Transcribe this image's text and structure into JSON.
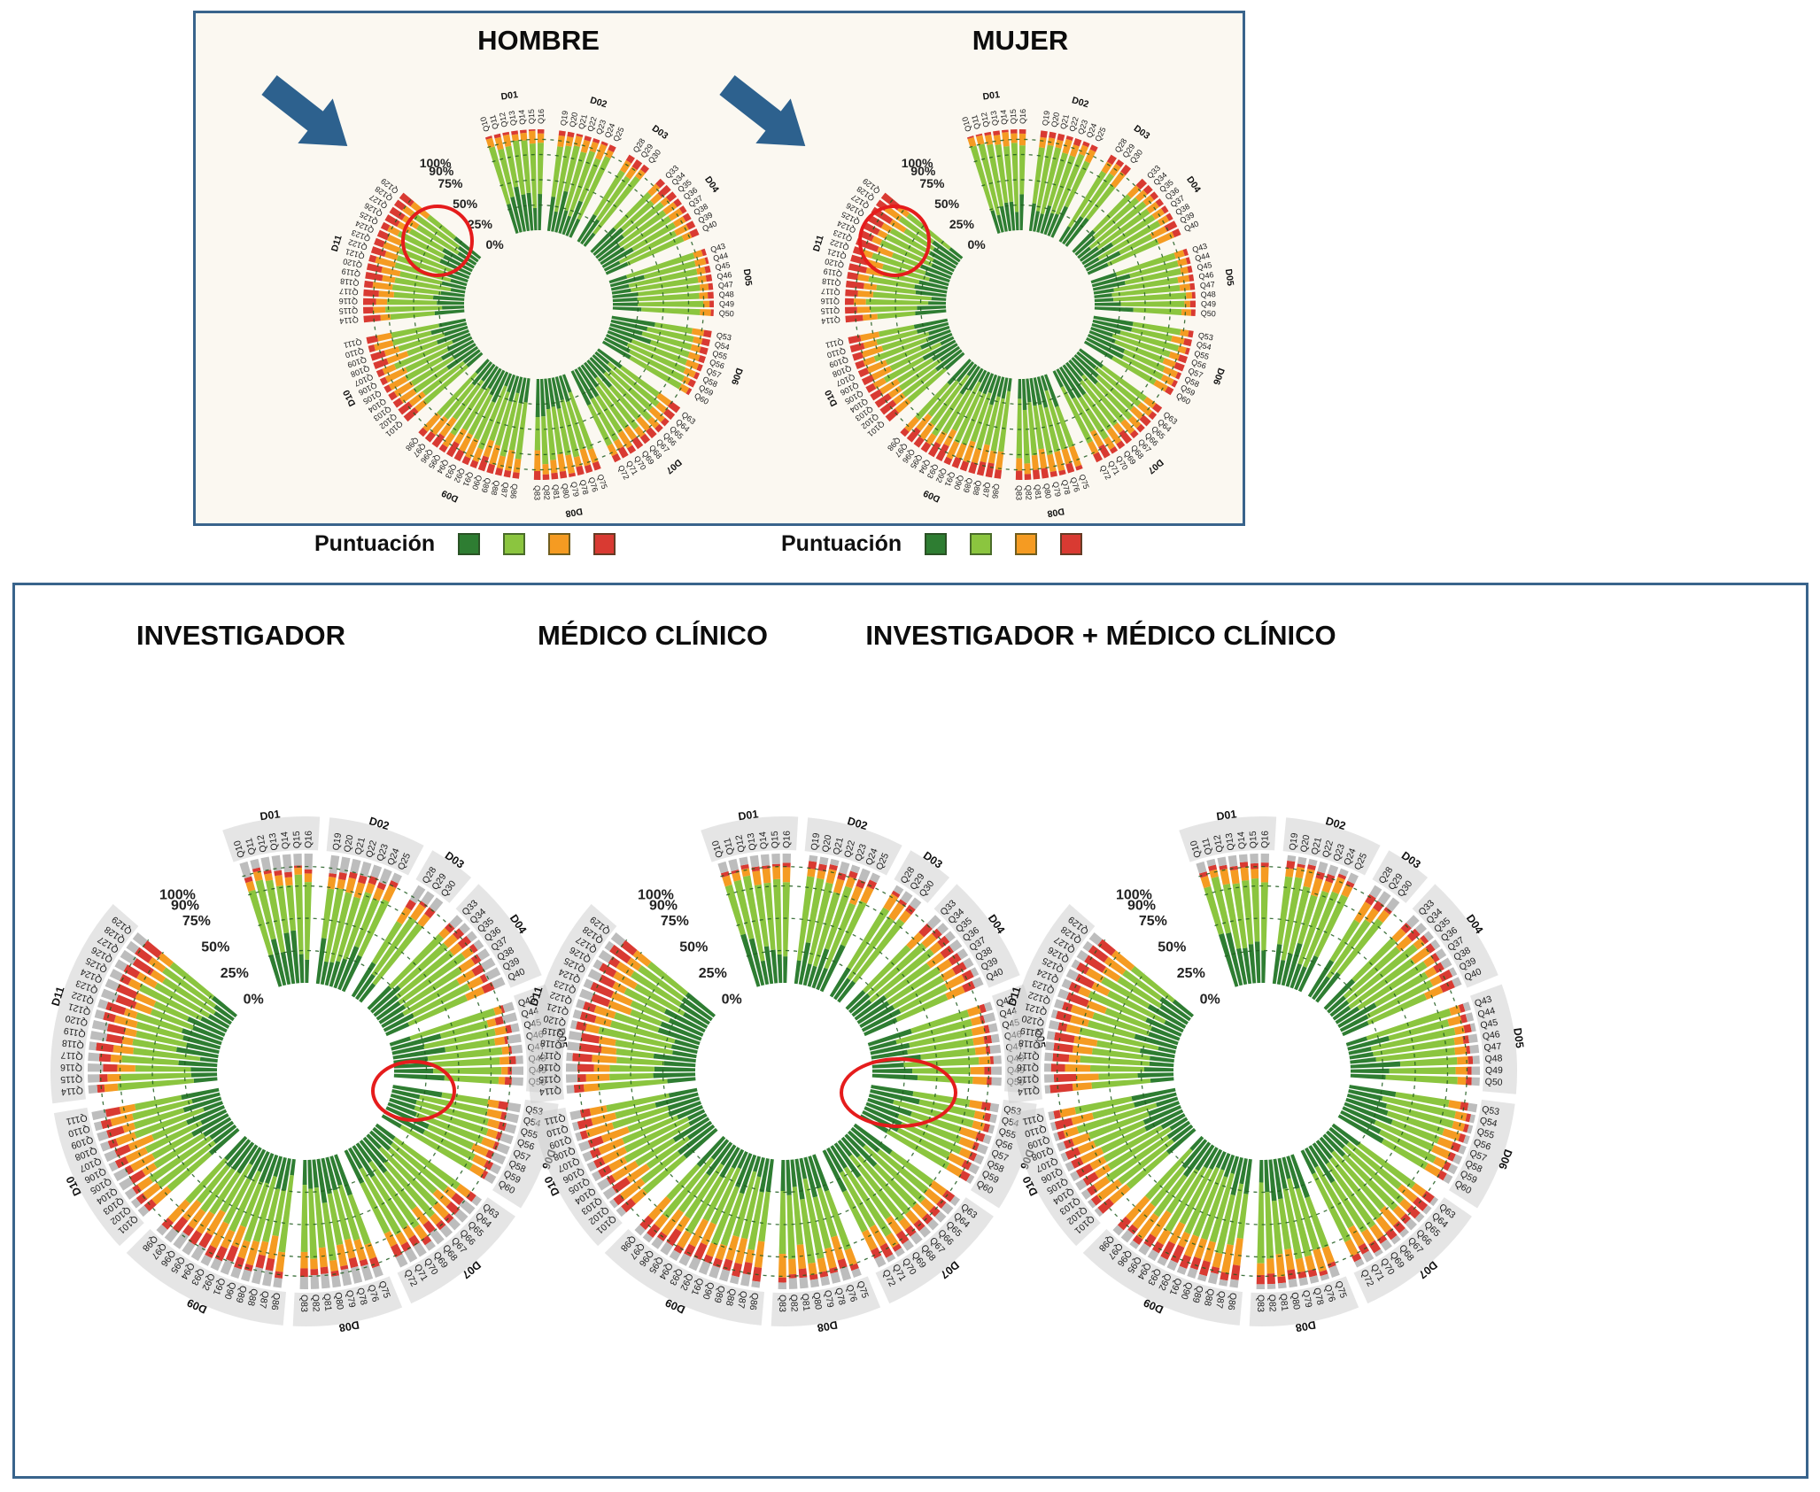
{
  "figure": {
    "top_panel": {
      "charts": [
        {
          "title": "HOMBRE"
        },
        {
          "title": "MUJER"
        }
      ],
      "legends": [
        {
          "label": "Puntuación"
        },
        {
          "label": "Puntuación"
        }
      ]
    },
    "bottom_panel": {
      "charts": [
        {
          "title": "INVESTIGADOR"
        },
        {
          "title": "MÉDICO CLÍNICO"
        },
        {
          "title": "INVESTIGADOR + MÉDICO CLÍNICO"
        }
      ]
    }
  },
  "chart_data": {
    "type": "radial_stacked_bar",
    "radial_axis": {
      "ticks": [
        "100%",
        "90%",
        "75%",
        "50%",
        "25%",
        "0%"
      ],
      "values": [
        100,
        90,
        75,
        50,
        25,
        0
      ]
    },
    "score_legend": {
      "label": "Puntuación",
      "category_names": [
        "score-dark-green",
        "score-light-green",
        "score-orange",
        "score-red"
      ],
      "colors": [
        "#2e7d32",
        "#8bc53f",
        "#f59b22",
        "#d93a32"
      ]
    },
    "gray_color": "#bdbdbd",
    "grid_values": [
      0.25,
      0.5,
      0.75,
      0.9
    ],
    "domains": [
      {
        "id": "D01",
        "questions": [
          "Q10",
          "Q11",
          "Q12",
          "Q13",
          "Q14",
          "Q15",
          "Q16"
        ]
      },
      {
        "id": "D02",
        "questions": [
          "Q19",
          "Q20",
          "Q21",
          "Q22",
          "Q23",
          "Q24",
          "Q25"
        ]
      },
      {
        "id": "D03",
        "questions": [
          "Q28",
          "Q29",
          "Q30"
        ]
      },
      {
        "id": "D04",
        "questions": [
          "Q33",
          "Q34",
          "Q35",
          "Q36",
          "Q37",
          "Q38",
          "Q39",
          "Q40"
        ]
      },
      {
        "id": "D05",
        "questions": [
          "Q43",
          "Q44",
          "Q45",
          "Q46",
          "Q47",
          "Q48",
          "Q49",
          "Q50"
        ]
      },
      {
        "id": "D06",
        "questions": [
          "Q53",
          "Q54",
          "Q55",
          "Q56",
          "Q57",
          "Q58",
          "Q59",
          "Q60"
        ]
      },
      {
        "id": "D07",
        "questions": [
          "Q63",
          "Q64",
          "Q65",
          "Q66",
          "Q67",
          "Q68",
          "Q69",
          "Q70",
          "Q71",
          "Q72"
        ]
      },
      {
        "id": "D08",
        "questions": [
          "Q75",
          "Q76",
          "Q78",
          "Q79",
          "Q80",
          "Q81",
          "Q82",
          "Q83"
        ]
      },
      {
        "id": "D09",
        "questions": [
          "Q86",
          "Q87",
          "Q88",
          "Q89",
          "Q90",
          "Q91",
          "Q92",
          "Q93",
          "Q94",
          "Q95",
          "Q96",
          "Q97",
          "Q98"
        ]
      },
      {
        "id": "D10",
        "questions": [
          "Q101",
          "Q102",
          "Q103",
          "Q104",
          "Q105",
          "Q106",
          "Q107",
          "Q108",
          "Q109",
          "Q110",
          "Q111"
        ]
      },
      {
        "id": "D11",
        "questions": [
          "Q114",
          "Q115",
          "Q116",
          "Q117",
          "Q118",
          "Q119",
          "Q120",
          "Q121",
          "Q122",
          "Q123",
          "Q124",
          "Q125",
          "Q126",
          "Q127",
          "Q128",
          "Q129"
        ]
      }
    ],
    "charts": [
      {
        "name": "HOMBRE",
        "seed": 1,
        "has_gray": false,
        "profiles": [
          [
            0.32,
            0.09,
            0.03,
            0
          ],
          [
            0.3,
            0.11,
            0.04,
            0
          ],
          [
            0.26,
            0.13,
            0.06,
            0
          ],
          [
            0.28,
            0.12,
            0.08,
            0
          ],
          [
            0.32,
            0.08,
            0.04,
            0
          ],
          [
            0.3,
            0.1,
            0.06,
            0
          ],
          [
            0.27,
            0.13,
            0.08,
            0
          ],
          [
            0.27,
            0.15,
            0.06,
            0
          ],
          [
            0.24,
            0.17,
            0.1,
            0
          ],
          [
            0.26,
            0.17,
            0.1,
            0
          ],
          [
            0.26,
            0.15,
            0.13,
            0
          ]
        ]
      },
      {
        "name": "MUJER",
        "seed": 2,
        "has_gray": false,
        "profiles": [
          [
            0.31,
            0.1,
            0.03,
            0
          ],
          [
            0.29,
            0.11,
            0.05,
            0
          ],
          [
            0.26,
            0.13,
            0.06,
            0
          ],
          [
            0.27,
            0.12,
            0.09,
            0
          ],
          [
            0.31,
            0.09,
            0.04,
            0
          ],
          [
            0.29,
            0.1,
            0.07,
            0
          ],
          [
            0.26,
            0.13,
            0.09,
            0
          ],
          [
            0.26,
            0.15,
            0.07,
            0
          ],
          [
            0.23,
            0.17,
            0.11,
            0
          ],
          [
            0.25,
            0.17,
            0.11,
            0
          ],
          [
            0.25,
            0.14,
            0.15,
            0
          ]
        ]
      },
      {
        "name": "INVESTIGADOR",
        "seed": 3,
        "has_gray": true,
        "profiles": [
          [
            0.29,
            0.08,
            0.03,
            0.1
          ],
          [
            0.27,
            0.1,
            0.04,
            0.1
          ],
          [
            0.24,
            0.12,
            0.05,
            0.11
          ],
          [
            0.26,
            0.11,
            0.07,
            0.09
          ],
          [
            0.29,
            0.08,
            0.04,
            0.08
          ],
          [
            0.27,
            0.09,
            0.05,
            0.08
          ],
          [
            0.25,
            0.12,
            0.07,
            0.08
          ],
          [
            0.25,
            0.13,
            0.05,
            0.09
          ],
          [
            0.22,
            0.15,
            0.08,
            0.1
          ],
          [
            0.24,
            0.15,
            0.09,
            0.08
          ],
          [
            0.24,
            0.13,
            0.11,
            0.09
          ]
        ]
      },
      {
        "name": "MÉDICO CLÍNICO",
        "seed": 4,
        "has_gray": true,
        "profiles": [
          [
            0.3,
            0.09,
            0.03,
            0.07
          ],
          [
            0.28,
            0.1,
            0.04,
            0.07
          ],
          [
            0.24,
            0.12,
            0.05,
            0.08
          ],
          [
            0.26,
            0.11,
            0.07,
            0.07
          ],
          [
            0.3,
            0.08,
            0.04,
            0.06
          ],
          [
            0.28,
            0.1,
            0.05,
            0.06
          ],
          [
            0.25,
            0.12,
            0.07,
            0.06
          ],
          [
            0.25,
            0.14,
            0.06,
            0.07
          ],
          [
            0.22,
            0.16,
            0.09,
            0.07
          ],
          [
            0.24,
            0.16,
            0.09,
            0.06
          ],
          [
            0.24,
            0.14,
            0.12,
            0.07
          ]
        ]
      },
      {
        "name": "INVESTIGADOR + MÉDICO CLÍNICO",
        "seed": 5,
        "has_gray": true,
        "profiles": [
          [
            0.3,
            0.09,
            0.03,
            0.06
          ],
          [
            0.28,
            0.1,
            0.04,
            0.06
          ],
          [
            0.24,
            0.12,
            0.05,
            0.07
          ],
          [
            0.26,
            0.11,
            0.07,
            0.06
          ],
          [
            0.3,
            0.08,
            0.04,
            0.05
          ],
          [
            0.28,
            0.1,
            0.05,
            0.05
          ],
          [
            0.25,
            0.12,
            0.07,
            0.05
          ],
          [
            0.25,
            0.14,
            0.06,
            0.06
          ],
          [
            0.22,
            0.16,
            0.09,
            0.06
          ],
          [
            0.24,
            0.16,
            0.09,
            0.05
          ],
          [
            0.24,
            0.14,
            0.12,
            0.06
          ]
        ]
      }
    ],
    "annotations": {
      "arrows": [
        {
          "panel": "top",
          "target": "HOMBRE"
        },
        {
          "panel": "top",
          "target": "MUJER"
        }
      ],
      "highlights": [
        {
          "target": "HOMBRE"
        },
        {
          "target": "MUJER"
        },
        {
          "target": "INVESTIGADOR"
        },
        {
          "target": "MÉDICO CLÍNICO"
        }
      ],
      "highlight_color": "#e51c1c",
      "arrow_color": "#2d618e"
    }
  }
}
